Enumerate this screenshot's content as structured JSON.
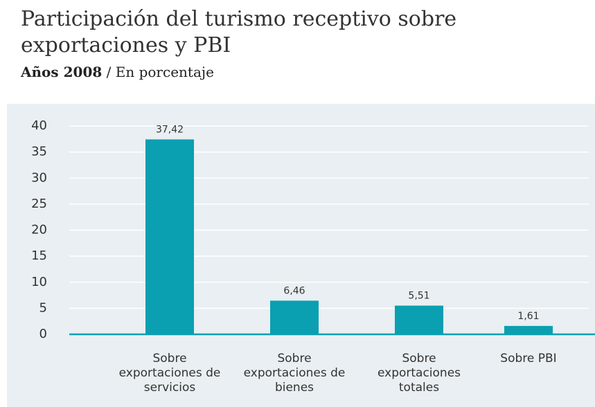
{
  "chart_data": {
    "type": "bar",
    "title": [
      "Participación del turismo receptivo sobre",
      "exportaciones y PBI"
    ],
    "subtitle_bold": "Años 2008",
    "subtitle": "/ En porcentaje",
    "categories": [
      "Sobre exportaciones de servicios",
      "Sobre exportaciones de bienes",
      "Sobre exportaciones totales",
      "Sobre PBI"
    ],
    "values": [
      37.42,
      6.46,
      5.51,
      1.61
    ],
    "value_labels": [
      "37,42",
      "6,46",
      "5,51",
      "1,61"
    ],
    "color": "#0aa0b1",
    "ylim": [
      0,
      40
    ],
    "yticks": [
      0,
      5,
      10,
      15,
      20,
      25,
      30,
      35,
      40
    ],
    "grid": true
  }
}
